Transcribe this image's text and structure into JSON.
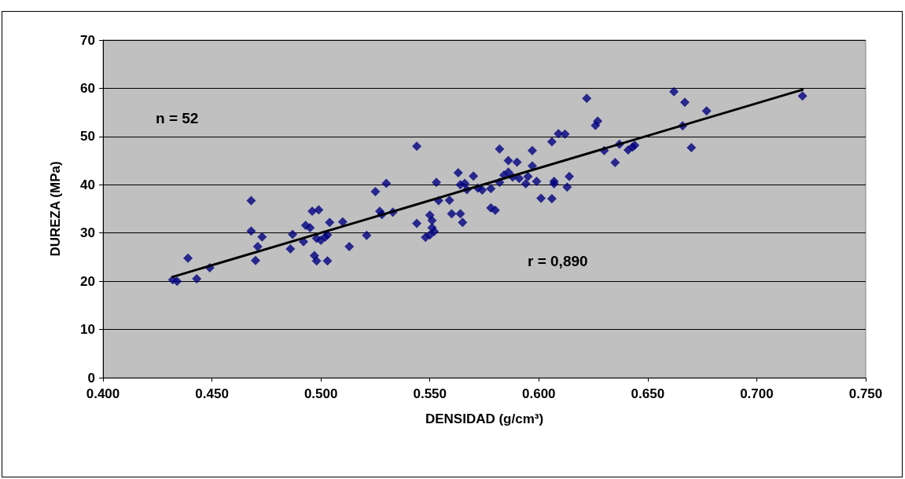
{
  "chart_data": {
    "type": "scatter",
    "xlabel": "DENSIDAD (g/cm³)",
    "ylabel": "DUREZA (MPa)",
    "annotations": [
      "n = 52",
      "r = 0,890"
    ],
    "xlim": [
      0.4,
      0.75
    ],
    "xticks": [
      {
        "value": 0.4,
        "label": "0.400"
      },
      {
        "value": 0.45,
        "label": "0.450"
      },
      {
        "value": 0.5,
        "label": "0.500"
      },
      {
        "value": 0.55,
        "label": "0.550"
      },
      {
        "value": 0.6,
        "label": "0.600"
      },
      {
        "value": 0.65,
        "label": "0.650"
      },
      {
        "value": 0.7,
        "label": "0.700"
      },
      {
        "value": 0.75,
        "label": "0.750"
      }
    ],
    "ylim": [
      0,
      70
    ],
    "yticks": [
      0,
      10,
      20,
      30,
      40,
      50,
      60,
      70
    ],
    "grid": "y",
    "marker": "diamond",
    "series": [
      {
        "color": "#000080",
        "x": [
          0.432,
          0.434,
          0.439,
          0.443,
          0.449,
          0.468,
          0.468,
          0.47,
          0.471,
          0.473,
          0.486,
          0.487,
          0.492,
          0.493,
          0.495,
          0.496,
          0.497,
          0.498,
          0.498,
          0.499,
          0.5,
          0.502,
          0.503,
          0.503,
          0.504,
          0.51,
          0.513,
          0.521,
          0.525,
          0.527,
          0.528,
          0.53,
          0.533,
          0.544,
          0.544,
          0.548,
          0.55,
          0.55,
          0.551,
          0.552,
          0.551,
          0.553,
          0.554,
          0.559,
          0.56,
          0.563,
          0.564,
          0.564,
          0.565,
          0.566,
          0.567,
          0.57,
          0.572,
          0.574,
          0.578,
          0.578,
          0.58,
          0.582,
          0.582,
          0.584,
          0.586,
          0.586,
          0.588,
          0.59,
          0.591,
          0.594,
          0.595,
          0.597,
          0.597,
          0.599,
          0.601,
          0.606,
          0.606,
          0.607,
          0.607,
          0.609,
          0.612,
          0.613,
          0.614,
          0.622,
          0.626,
          0.627,
          0.63,
          0.635,
          0.637,
          0.641,
          0.643,
          0.644,
          0.662,
          0.666,
          0.667,
          0.67,
          0.677,
          0.721
        ],
        "values": [
          20.3,
          20.0,
          24.8,
          20.5,
          22.8,
          36.7,
          30.4,
          24.3,
          27.2,
          29.2,
          26.7,
          29.7,
          28.2,
          31.6,
          31.1,
          34.5,
          25.3,
          24.2,
          28.9,
          34.8,
          28.5,
          29.2,
          29.6,
          24.2,
          32.2,
          32.3,
          27.2,
          29.5,
          38.6,
          34.5,
          33.8,
          40.3,
          34.3,
          48.0,
          32.0,
          29.1,
          33.7,
          29.6,
          31.1,
          30.3,
          32.6,
          40.5,
          36.7,
          36.8,
          34.0,
          42.5,
          34.0,
          40.0,
          32.2,
          40.3,
          39.0,
          41.8,
          39.3,
          38.9,
          39.2,
          35.2,
          34.7,
          40.5,
          47.4,
          42.0,
          45.0,
          42.6,
          41.6,
          44.7,
          41.3,
          40.2,
          41.7,
          47.1,
          43.9,
          40.7,
          37.2,
          48.9,
          37.1,
          40.7,
          40.2,
          50.6,
          50.5,
          39.5,
          41.7,
          57.9,
          52.3,
          53.2,
          47.1,
          44.6,
          48.4,
          47.2,
          47.8,
          48.2,
          59.3,
          52.2,
          57.1,
          47.7,
          55.3,
          58.4
        ]
      },
      {
        "type": "line",
        "color": "#000000",
        "marker": "none",
        "line_style": "solid",
        "x": [
          0.432,
          0.721
        ],
        "values": [
          20.9,
          59.7
        ]
      }
    ]
  }
}
